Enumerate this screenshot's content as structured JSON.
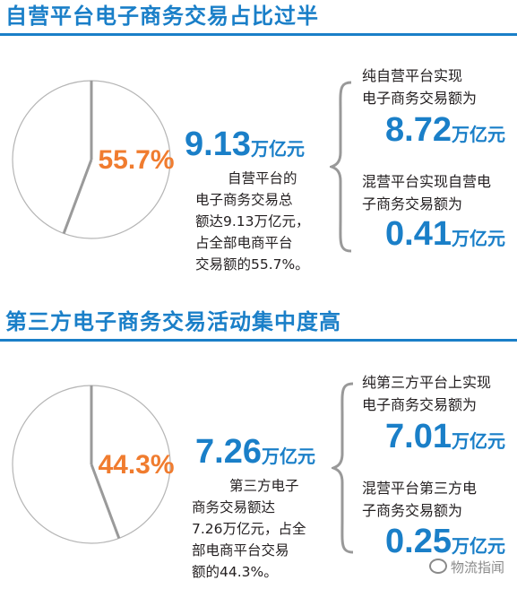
{
  "sections": [
    {
      "title": "自营平台电子商务交易占比过半",
      "pie_percent_label": "55.7%",
      "total": {
        "value": "9.13",
        "unit": "万亿元"
      },
      "description_lines": [
        "自营平台的",
        "电子商务交易总",
        "额达9.13万亿元，",
        "占全部电商平台",
        "交易额的55.7%。"
      ],
      "items": [
        {
          "label_lines": [
            "纯自营平台实现",
            "电子商务交易额为"
          ],
          "value": "8.72",
          "unit": "万亿元"
        },
        {
          "label_lines": [
            "混营平台实现自营电",
            "子商务交易额为"
          ],
          "value": "0.41",
          "unit": "万亿元"
        }
      ]
    },
    {
      "title": "第三方电子商务交易活动集中度高",
      "pie_percent_label": "44.3%",
      "total": {
        "value": "7.26",
        "unit": "万亿元"
      },
      "description_lines": [
        "第三方电子",
        "商务交易额达",
        "7.26万亿元，占全",
        "部电商平台交易",
        "额的44.3%。"
      ],
      "items": [
        {
          "label_lines": [
            "纯第三方平台上实现",
            "电子商务交易额为"
          ],
          "value": "7.01",
          "unit": "万亿元"
        },
        {
          "label_lines": [
            "混营平台第三方电",
            "子商务交易额为"
          ],
          "value": "0.25",
          "unit": "万亿元"
        }
      ]
    }
  ],
  "chart_data": [
    {
      "type": "pie",
      "title": "自营平台电子商务交易占比过半",
      "slices": [
        {
          "value": 55.7,
          "label": "55.7%"
        },
        {
          "value": 44.3
        }
      ],
      "highlight_color": "#f07c2f"
    },
    {
      "type": "pie",
      "title": "第三方电子商务交易活动集中度高",
      "slices": [
        {
          "value": 44.3,
          "label": "44.3%"
        },
        {
          "value": 55.7
        }
      ],
      "highlight_color": "#f07c2f"
    }
  ],
  "watermark": "物流指闻",
  "colors": {
    "accent_blue": "#1a7fc8",
    "pie_label_orange": "#f07c2f",
    "pie_line_gray": "#9a9a9a"
  }
}
